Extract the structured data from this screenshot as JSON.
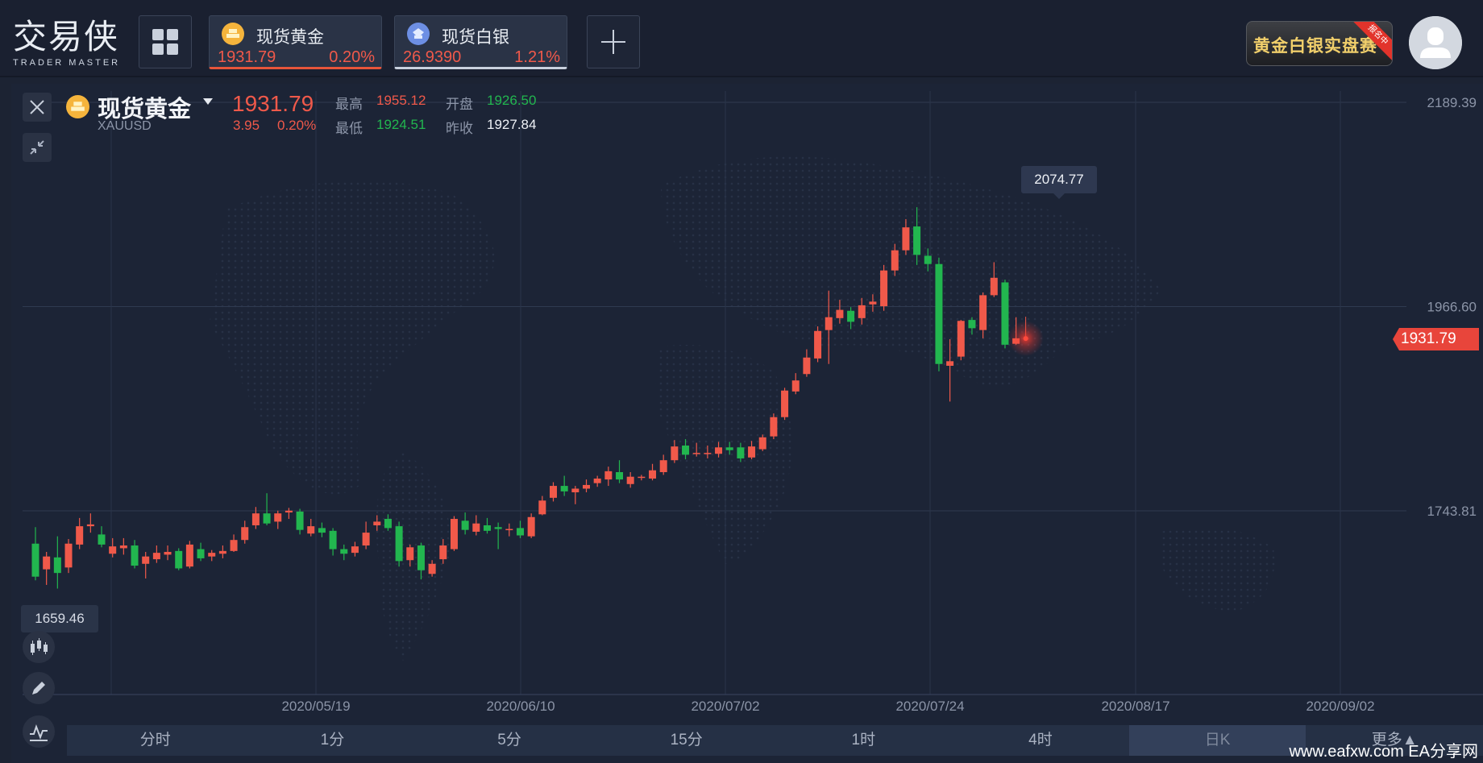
{
  "logo": {
    "cn": "交易侠",
    "en": "TRADER MASTER"
  },
  "tabs": [
    {
      "name": "现货黄金",
      "price": "1931.79",
      "pct": "0.20%",
      "icon": "gold-coin-icon"
    },
    {
      "name": "现货白银",
      "price": "26.9390",
      "pct": "1.21%",
      "icon": "silver-coin-icon"
    }
  ],
  "banner": {
    "text": "黄金白银实盘赛",
    "ribbon": "报名中"
  },
  "symbol": {
    "name": "现货黄金",
    "code": "XAUUSD",
    "price": "1931.79",
    "change": "3.95",
    "pct": "0.20%",
    "high_label": "最高",
    "high": "1955.12",
    "open_label": "开盘",
    "open": "1926.50",
    "low_label": "最低",
    "low": "1924.51",
    "prev_label": "昨收",
    "prev": "1927.84"
  },
  "colors": {
    "up": "#f0594a",
    "down": "#22b64f",
    "bg": "#1c2436",
    "accent_gold": "#f3b93c"
  },
  "chart_data": {
    "type": "candlestick",
    "y_ticks": [
      "2189.39",
      "1966.60",
      "1743.81"
    ],
    "y_range": [
      1520,
      2189.39
    ],
    "x_ticks": [
      "2020/05/19",
      "2020/06/10",
      "2020/07/02",
      "2020/07/24",
      "2020/08/17",
      "2020/09/02"
    ],
    "peak_label": "2074.77",
    "low_label": "1659.46",
    "last_label": "1931.79",
    "candles": [
      {
        "o": 1708,
        "c": 1672,
        "h": 1726,
        "l": 1668
      },
      {
        "o": 1680,
        "c": 1694,
        "h": 1699,
        "l": 1663
      },
      {
        "o": 1693,
        "c": 1676,
        "h": 1716,
        "l": 1659
      },
      {
        "o": 1682,
        "c": 1708,
        "h": 1713,
        "l": 1676
      },
      {
        "o": 1707,
        "c": 1727,
        "h": 1736,
        "l": 1702
      },
      {
        "o": 1727,
        "c": 1729,
        "h": 1741,
        "l": 1720
      },
      {
        "o": 1718,
        "c": 1707,
        "h": 1727,
        "l": 1704
      },
      {
        "o": 1697,
        "c": 1705,
        "h": 1714,
        "l": 1693
      },
      {
        "o": 1703,
        "c": 1706,
        "h": 1714,
        "l": 1696
      },
      {
        "o": 1706,
        "c": 1684,
        "h": 1712,
        "l": 1681
      },
      {
        "o": 1686,
        "c": 1694,
        "h": 1699,
        "l": 1670
      },
      {
        "o": 1691,
        "c": 1698,
        "h": 1706,
        "l": 1687
      },
      {
        "o": 1696,
        "c": 1699,
        "h": 1706,
        "l": 1690
      },
      {
        "o": 1700,
        "c": 1681,
        "h": 1703,
        "l": 1679
      },
      {
        "o": 1683,
        "c": 1707,
        "h": 1711,
        "l": 1681
      },
      {
        "o": 1702,
        "c": 1692,
        "h": 1709,
        "l": 1689
      },
      {
        "o": 1694,
        "c": 1698,
        "h": 1701,
        "l": 1689
      },
      {
        "o": 1697,
        "c": 1700,
        "h": 1706,
        "l": 1692
      },
      {
        "o": 1700,
        "c": 1712,
        "h": 1718,
        "l": 1699
      },
      {
        "o": 1712,
        "c": 1726,
        "h": 1733,
        "l": 1708
      },
      {
        "o": 1728,
        "c": 1741,
        "h": 1748,
        "l": 1724
      },
      {
        "o": 1741,
        "c": 1730,
        "h": 1763,
        "l": 1728
      },
      {
        "o": 1732,
        "c": 1741,
        "h": 1744,
        "l": 1724
      },
      {
        "o": 1742,
        "c": 1744,
        "h": 1747,
        "l": 1735
      },
      {
        "o": 1743,
        "c": 1723,
        "h": 1746,
        "l": 1718
      },
      {
        "o": 1719,
        "c": 1727,
        "h": 1735,
        "l": 1716
      },
      {
        "o": 1725,
        "c": 1720,
        "h": 1731,
        "l": 1715
      },
      {
        "o": 1722,
        "c": 1702,
        "h": 1725,
        "l": 1695
      },
      {
        "o": 1702,
        "c": 1697,
        "h": 1707,
        "l": 1690
      },
      {
        "o": 1698,
        "c": 1705,
        "h": 1710,
        "l": 1694
      },
      {
        "o": 1706,
        "c": 1720,
        "h": 1732,
        "l": 1702
      },
      {
        "o": 1728,
        "c": 1732,
        "h": 1739,
        "l": 1722
      },
      {
        "o": 1735,
        "c": 1725,
        "h": 1740,
        "l": 1722
      },
      {
        "o": 1727,
        "c": 1689,
        "h": 1732,
        "l": 1683
      },
      {
        "o": 1690,
        "c": 1704,
        "h": 1707,
        "l": 1683
      },
      {
        "o": 1706,
        "c": 1679,
        "h": 1709,
        "l": 1669
      },
      {
        "o": 1675,
        "c": 1686,
        "h": 1690,
        "l": 1672
      },
      {
        "o": 1691,
        "c": 1706,
        "h": 1713,
        "l": 1686
      },
      {
        "o": 1702,
        "c": 1735,
        "h": 1738,
        "l": 1700
      },
      {
        "o": 1733,
        "c": 1723,
        "h": 1742,
        "l": 1718
      },
      {
        "o": 1721,
        "c": 1730,
        "h": 1739,
        "l": 1717
      },
      {
        "o": 1728,
        "c": 1722,
        "h": 1736,
        "l": 1719
      },
      {
        "o": 1726,
        "c": 1724,
        "h": 1731,
        "l": 1702
      },
      {
        "o": 1723,
        "c": 1724,
        "h": 1730,
        "l": 1716
      },
      {
        "o": 1725,
        "c": 1717,
        "h": 1733,
        "l": 1714
      },
      {
        "o": 1716,
        "c": 1737,
        "h": 1741,
        "l": 1714
      },
      {
        "o": 1740,
        "c": 1755,
        "h": 1760,
        "l": 1739
      },
      {
        "o": 1758,
        "c": 1771,
        "h": 1775,
        "l": 1754
      },
      {
        "o": 1771,
        "c": 1765,
        "h": 1782,
        "l": 1760
      },
      {
        "o": 1764,
        "c": 1768,
        "h": 1771,
        "l": 1751
      },
      {
        "o": 1768,
        "c": 1772,
        "h": 1778,
        "l": 1764
      },
      {
        "o": 1774,
        "c": 1779,
        "h": 1782,
        "l": 1770
      },
      {
        "o": 1778,
        "c": 1787,
        "h": 1792,
        "l": 1771
      },
      {
        "o": 1786,
        "c": 1778,
        "h": 1799,
        "l": 1774
      },
      {
        "o": 1773,
        "c": 1781,
        "h": 1786,
        "l": 1769
      },
      {
        "o": 1781,
        "c": 1781,
        "h": 1783,
        "l": 1777
      },
      {
        "o": 1779,
        "c": 1788,
        "h": 1795,
        "l": 1777
      },
      {
        "o": 1786,
        "c": 1799,
        "h": 1805,
        "l": 1783
      },
      {
        "o": 1799,
        "c": 1814,
        "h": 1821,
        "l": 1796
      },
      {
        "o": 1815,
        "c": 1805,
        "h": 1822,
        "l": 1800
      },
      {
        "o": 1807,
        "c": 1807,
        "h": 1818,
        "l": 1803
      },
      {
        "o": 1807,
        "c": 1807,
        "h": 1815,
        "l": 1801
      },
      {
        "o": 1806,
        "c": 1813,
        "h": 1819,
        "l": 1802
      },
      {
        "o": 1813,
        "c": 1810,
        "h": 1819,
        "l": 1805
      },
      {
        "o": 1813,
        "c": 1801,
        "h": 1818,
        "l": 1797
      },
      {
        "o": 1802,
        "c": 1814,
        "h": 1820,
        "l": 1800
      },
      {
        "o": 1811,
        "c": 1824,
        "h": 1827,
        "l": 1809
      },
      {
        "o": 1825,
        "c": 1846,
        "h": 1850,
        "l": 1822
      },
      {
        "o": 1846,
        "c": 1875,
        "h": 1878,
        "l": 1843
      },
      {
        "o": 1874,
        "c": 1886,
        "h": 1894,
        "l": 1871
      },
      {
        "o": 1893,
        "c": 1911,
        "h": 1920,
        "l": 1890
      },
      {
        "o": 1910,
        "c": 1940,
        "h": 1945,
        "l": 1906
      },
      {
        "o": 1941,
        "c": 1955,
        "h": 1984,
        "l": 1904
      },
      {
        "o": 1954,
        "c": 1963,
        "h": 1974,
        "l": 1948
      },
      {
        "o": 1962,
        "c": 1950,
        "h": 1966,
        "l": 1942
      },
      {
        "o": 1954,
        "c": 1968,
        "h": 1976,
        "l": 1947
      },
      {
        "o": 1969,
        "c": 1972,
        "h": 1980,
        "l": 1961
      },
      {
        "o": 1967,
        "c": 2006,
        "h": 2012,
        "l": 1962
      },
      {
        "o": 2006,
        "c": 2028,
        "h": 2035,
        "l": 2000
      },
      {
        "o": 2028,
        "c": 2053,
        "h": 2062,
        "l": 2023
      },
      {
        "o": 2054,
        "c": 2023,
        "h": 2075,
        "l": 2012
      },
      {
        "o": 2022,
        "c": 2013,
        "h": 2030,
        "l": 2005
      },
      {
        "o": 2013,
        "c": 1904,
        "h": 2020,
        "l": 1896
      },
      {
        "o": 1902,
        "c": 1907,
        "h": 1931,
        "l": 1863
      },
      {
        "o": 1912,
        "c": 1951,
        "h": 1952,
        "l": 1908
      },
      {
        "o": 1952,
        "c": 1943,
        "h": 1955,
        "l": 1936
      },
      {
        "o": 1941,
        "c": 1979,
        "h": 1982,
        "l": 1932
      },
      {
        "o": 1979,
        "c": 1998,
        "h": 2015,
        "l": 1977
      },
      {
        "o": 1993,
        "c": 1925,
        "h": 1996,
        "l": 1921
      },
      {
        "o": 1926,
        "c": 1932,
        "h": 1955,
        "l": 1925
      }
    ]
  },
  "timeframes": [
    "分时",
    "1分",
    "5分",
    "15分",
    "1时",
    "4时",
    "日K",
    "更多▲"
  ],
  "active_timeframe_index": 6,
  "watermark": "www.eafxw.com   EA分享网"
}
